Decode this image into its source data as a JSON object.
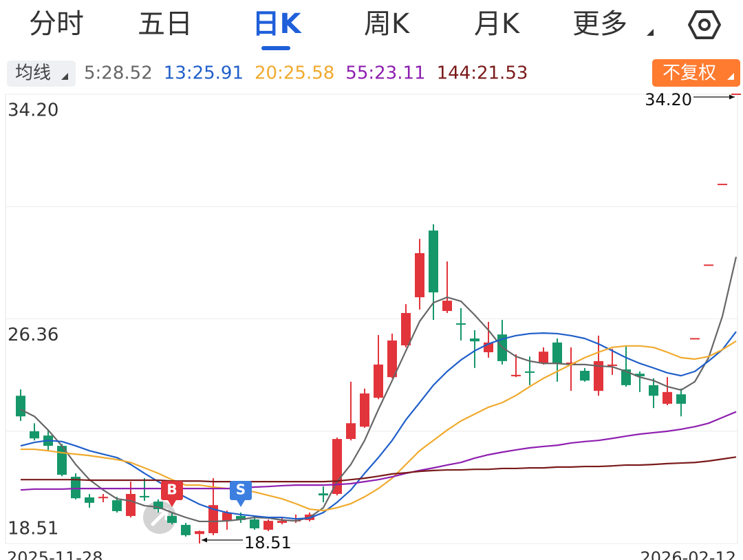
{
  "tabs": [
    "分时",
    "五日",
    "日K",
    "周K",
    "月K",
    "更多"
  ],
  "indicator_button": "均线",
  "adjust_button": "不复权",
  "chart_data": {
    "type": "candlestick",
    "categories": [
      "2025-11-28",
      null,
      null,
      null,
      null,
      null,
      null,
      null,
      null,
      null,
      null,
      null,
      null,
      null,
      null,
      null,
      null,
      null,
      null,
      null,
      null,
      null,
      null,
      null,
      null,
      null,
      null,
      null,
      null,
      null,
      null,
      null,
      null,
      null,
      null,
      null,
      null,
      null,
      null,
      null,
      null,
      null,
      null,
      null,
      null,
      null,
      null,
      null,
      null,
      null,
      null,
      null,
      "2026-02-12"
    ],
    "open": [
      23.67,
      22.43,
      22.28,
      21.92,
      20.84,
      20.12,
      20.09,
      20.02,
      19.47,
      20.17,
      19.97,
      19.47,
      19.16,
      18.84,
      18.87,
      19.3,
      19.47,
      19.35,
      18.99,
      19.23,
      19.28,
      19.33,
      20.26,
      20.24,
      22.16,
      22.59,
      23.6,
      24.32,
      25.43,
      27.11,
      29.44,
      26.63,
      26.2,
      25.67,
      25.19,
      25.81,
      24.35,
      24.52,
      24.8,
      25.53,
      24.76,
      24.54,
      23.84,
      24.71,
      24.59,
      24.44,
      24.04,
      23.39,
      23.72,
      25.66,
      28.23,
      31.05,
      34.2
    ],
    "high": [
      23.89,
      22.71,
      22.47,
      21.99,
      20.96,
      20.24,
      20.24,
      20.14,
      20.67,
      20.79,
      20.05,
      19.59,
      19.23,
      18.96,
      20.79,
      19.66,
      19.59,
      19.47,
      19.35,
      19.4,
      19.52,
      19.59,
      20.5,
      22.21,
      24.16,
      23.92,
      25.79,
      25.84,
      26.87,
      29.15,
      29.66,
      28.36,
      26.73,
      25.96,
      26.25,
      26.32,
      25.12,
      25.04,
      25.36,
      25.67,
      25.36,
      24.64,
      25.77,
      25.31,
      25.41,
      24.52,
      24.28,
      24.32,
      23.92,
      25.66,
      28.23,
      31.05,
      34.2
    ],
    "low": [
      22.79,
      22.11,
      21.75,
      20.86,
      20.05,
      19.76,
      19.95,
      19.59,
      19.42,
      20.0,
      19.59,
      19.18,
      18.75,
      18.51,
      18.8,
      18.99,
      19.23,
      18.99,
      18.94,
      19.18,
      19.23,
      19.28,
      19.95,
      20.19,
      22.11,
      22.55,
      23.55,
      24.28,
      25.36,
      26.68,
      26.32,
      26.56,
      25.6,
      24.64,
      25.0,
      24.76,
      24.32,
      24.04,
      24.76,
      24.16,
      23.84,
      24.16,
      23.67,
      24.4,
      23.99,
      23.8,
      23.24,
      23.34,
      22.95,
      25.66,
      28.23,
      31.05,
      34.2
    ],
    "close": [
      22.95,
      22.18,
      21.92,
      20.91,
      20.09,
      19.93,
      20.14,
      19.64,
      20.24,
      20.12,
      19.71,
      19.23,
      18.8,
      18.94,
      19.85,
      19.59,
      19.33,
      19.04,
      19.3,
      19.3,
      19.33,
      19.52,
      20.19,
      22.16,
      22.71,
      23.75,
      24.76,
      25.6,
      26.56,
      28.65,
      27.28,
      26.99,
      26.15,
      25.57,
      25.53,
      24.88,
      24.4,
      24.47,
      25.21,
      24.8,
      24.83,
      24.2,
      24.88,
      24.76,
      24.04,
      24.35,
      23.67,
      23.8,
      23.39,
      25.66,
      28.23,
      31.05,
      34.2
    ],
    "up_color": "#e2343b",
    "down_color": "#15976a",
    "series": [
      {
        "name": "5:28.52",
        "color": "#666666",
        "values": [
          23.19,
          22.95,
          22.47,
          21.92,
          21.27,
          20.74,
          20.38,
          20.07,
          20.0,
          19.83,
          19.78,
          19.59,
          19.42,
          19.28,
          19.28,
          19.3,
          19.35,
          19.42,
          19.4,
          19.33,
          19.3,
          19.42,
          19.76,
          20.67,
          21.27,
          22.11,
          23.19,
          24.2,
          25.24,
          26.27,
          26.92,
          27.11,
          26.97,
          26.49,
          25.96,
          25.36,
          25.04,
          24.88,
          24.8,
          24.8,
          24.76,
          24.76,
          24.71,
          24.68,
          24.52,
          24.32,
          24.2,
          23.99,
          23.87,
          24.16,
          25.0,
          26.44,
          28.52
        ]
      },
      {
        "name": "13:25.91",
        "color": "#1f5fc9",
        "values": [
          21.92,
          22.04,
          22.11,
          22.07,
          21.92,
          21.75,
          21.63,
          21.51,
          21.27,
          20.96,
          20.67,
          20.38,
          20.12,
          19.88,
          19.71,
          19.59,
          19.52,
          19.47,
          19.42,
          19.42,
          19.37,
          19.4,
          19.59,
          19.95,
          20.38,
          20.96,
          21.51,
          22.11,
          22.83,
          23.43,
          24.04,
          24.52,
          24.92,
          25.24,
          25.48,
          25.65,
          25.77,
          25.84,
          25.86,
          25.84,
          25.77,
          25.67,
          25.48,
          25.24,
          25.0,
          24.8,
          24.64,
          24.47,
          24.37,
          24.52,
          24.88,
          25.28,
          25.91
        ]
      },
      {
        "name": "20:25.58",
        "color": "#f0aa2e",
        "values": [
          21.8,
          21.8,
          21.75,
          21.68,
          21.63,
          21.58,
          21.51,
          21.44,
          21.34,
          21.15,
          20.96,
          20.74,
          20.55,
          20.55,
          20.48,
          20.43,
          20.38,
          20.31,
          20.19,
          20.07,
          19.9,
          19.71,
          19.66,
          19.76,
          19.9,
          20.14,
          20.43,
          20.79,
          21.27,
          21.75,
          22.11,
          22.47,
          22.79,
          23.03,
          23.27,
          23.43,
          23.68,
          23.99,
          24.28,
          24.52,
          24.76,
          25.0,
          25.19,
          25.36,
          25.41,
          25.41,
          25.36,
          25.19,
          25.0,
          24.95,
          25.04,
          25.28,
          25.58
        ]
      },
      {
        "name": "55:23.11",
        "color": "#8e1fb0",
        "values": [
          20.38,
          20.41,
          20.41,
          20.41,
          20.43,
          20.43,
          20.43,
          20.43,
          20.43,
          20.43,
          20.43,
          20.43,
          20.43,
          20.43,
          20.43,
          20.43,
          20.45,
          20.48,
          20.5,
          20.53,
          20.55,
          20.55,
          20.55,
          20.57,
          20.6,
          20.67,
          20.74,
          20.84,
          20.96,
          21.06,
          21.15,
          21.25,
          21.34,
          21.49,
          21.61,
          21.7,
          21.78,
          21.85,
          21.9,
          21.94,
          22.02,
          22.07,
          22.11,
          22.18,
          22.26,
          22.33,
          22.38,
          22.43,
          22.5,
          22.59,
          22.71,
          22.91,
          23.11
        ]
      },
      {
        "name": "144:21.53",
        "color": "#7a1a1a",
        "values": [
          20.74,
          20.74,
          20.74,
          20.74,
          20.74,
          20.72,
          20.72,
          20.72,
          20.72,
          20.72,
          20.72,
          20.69,
          20.69,
          20.69,
          20.67,
          20.67,
          20.67,
          20.67,
          20.67,
          20.67,
          20.67,
          20.67,
          20.67,
          20.69,
          20.74,
          20.79,
          20.86,
          20.94,
          20.98,
          21.03,
          21.06,
          21.08,
          21.08,
          21.1,
          21.1,
          21.13,
          21.13,
          21.15,
          21.15,
          21.18,
          21.18,
          21.2,
          21.2,
          21.22,
          21.25,
          21.25,
          21.27,
          21.3,
          21.32,
          21.34,
          21.39,
          21.46,
          21.53
        ]
      }
    ],
    "ylim": [
      18.51,
      34.2
    ],
    "yticks": [
      {
        "value": 18.51,
        "label": "18.51"
      },
      {
        "value": 26.36,
        "label": "26.36"
      },
      {
        "value": 34.2,
        "label": "34.20"
      }
    ],
    "grid": true,
    "annotations": [
      {
        "text": "34.20",
        "value": 34.2,
        "at": 52
      },
      {
        "text": "18.51",
        "value": 18.51,
        "at": 13
      }
    ],
    "trades": [
      {
        "label": "B",
        "at": 11,
        "color": "#e2343b"
      },
      {
        "label": "S",
        "at": 16,
        "color": "#3d7fe0"
      }
    ]
  }
}
